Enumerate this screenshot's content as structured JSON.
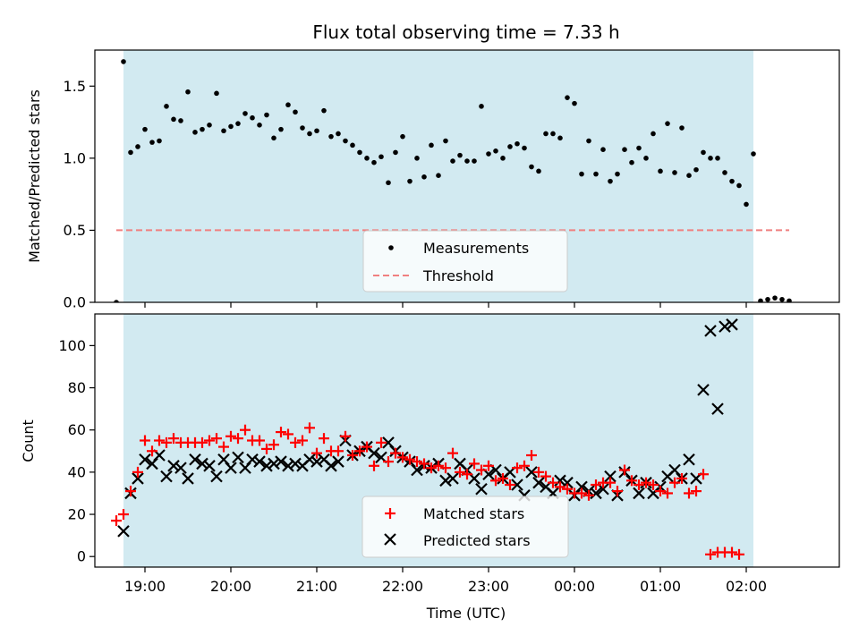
{
  "title": "Flux total observing time = 7.33 h",
  "colors": {
    "observing_band": "#add8e6",
    "measurements": "#000000",
    "threshold": "#f08080",
    "matched": "#ff0000",
    "predicted": "#000000"
  },
  "x_axis": {
    "label": "Time (UTC)",
    "ticks": [
      {
        "hour": 19,
        "label": "19:00"
      },
      {
        "hour": 20,
        "label": "20:00"
      },
      {
        "hour": 21,
        "label": "21:00"
      },
      {
        "hour": 22,
        "label": "22:00"
      },
      {
        "hour": 23,
        "label": "23:00"
      },
      {
        "hour": 24,
        "label": "00:00"
      },
      {
        "hour": 25,
        "label": "01:00"
      },
      {
        "hour": 26,
        "label": "02:00"
      }
    ]
  },
  "chart_data": [
    {
      "type": "scatter",
      "title": "Flux total observing time = 7.33 h",
      "ylabel": "Matched/Predicted stars",
      "xlim": [
        "18:25",
        "03:05"
      ],
      "ylim": [
        0,
        1.75
      ],
      "yticks": [
        {
          "value": 0,
          "label": "0.0"
        },
        {
          "value": 0.5,
          "label": "0.5"
        },
        {
          "value": 1.0,
          "label": "1.0"
        },
        {
          "value": 1.5,
          "label": "1.5"
        }
      ],
      "observing_window": [
        "18:45",
        "02:05"
      ],
      "legend": {
        "placement": "bottom-center",
        "entries": [
          "Measurements",
          "Threshold"
        ]
      },
      "threshold": {
        "name": "Threshold",
        "value": 0.5,
        "x_start": "18:40",
        "x_end": "02:30"
      },
      "series": [
        {
          "name": "Measurements",
          "x_start": "18:40",
          "x_step_minutes": 5,
          "y": [
            0.0,
            1.67,
            1.04,
            1.08,
            1.2,
            1.11,
            1.12,
            1.36,
            1.27,
            1.26,
            1.46,
            1.18,
            1.2,
            1.23,
            1.45,
            1.19,
            1.22,
            1.24,
            1.31,
            1.28,
            1.23,
            1.3,
            1.14,
            1.2,
            1.37,
            1.32,
            1.21,
            1.17,
            1.19,
            1.33,
            1.15,
            1.17,
            1.12,
            1.09,
            1.04,
            1.0,
            0.97,
            1.01,
            0.83,
            1.04,
            1.15,
            0.84,
            1.0,
            0.87,
            1.09,
            0.88,
            1.12,
            0.98,
            1.02,
            0.98,
            0.98,
            1.36,
            1.03,
            1.05,
            1.0,
            1.08,
            1.1,
            1.07,
            0.94,
            0.91,
            1.17,
            1.17,
            1.14,
            1.42,
            1.38,
            0.89,
            1.12,
            0.89,
            1.06,
            0.84,
            0.89,
            1.06,
            0.97,
            1.07,
            1.0,
            1.17,
            0.91,
            1.24,
            0.9,
            1.21,
            0.88,
            0.92,
            1.04,
            1.0,
            1.0,
            0.9,
            0.84,
            0.81,
            0.68,
            1.03,
            0.01,
            0.02,
            0.03,
            0.02,
            0.01
          ]
        }
      ]
    },
    {
      "type": "scatter",
      "xlabel": "Time (UTC)",
      "ylabel": "Count",
      "xlim": [
        "18:25",
        "03:05"
      ],
      "ylim": [
        -5,
        115
      ],
      "yticks": [
        {
          "value": 0,
          "label": "0"
        },
        {
          "value": 20,
          "label": "20"
        },
        {
          "value": 40,
          "label": "40"
        },
        {
          "value": 60,
          "label": "60"
        },
        {
          "value": 80,
          "label": "80"
        },
        {
          "value": 100,
          "label": "100"
        }
      ],
      "observing_window": [
        "18:45",
        "02:05"
      ],
      "legend": {
        "placement": "bottom-center",
        "entries": [
          "Matched stars",
          "Predicted stars"
        ]
      },
      "series": [
        {
          "name": "Matched stars",
          "marker": "plus",
          "x_start": "18:40",
          "x_step_minutes": 5,
          "y": [
            17,
            20,
            31,
            40,
            55,
            50,
            55,
            54,
            56,
            54,
            54,
            54,
            54,
            55,
            56,
            52,
            57,
            56,
            60,
            55,
            55,
            51,
            53,
            59,
            58,
            54,
            55,
            61,
            49,
            56,
            50,
            50,
            57,
            48,
            50,
            52,
            43,
            54,
            45,
            49,
            47,
            46,
            45,
            44,
            42,
            43,
            42,
            49,
            40,
            39,
            44,
            41,
            43,
            36,
            37,
            34,
            42,
            43,
            48,
            40,
            38,
            35,
            33,
            32,
            30,
            30,
            29,
            34,
            35,
            35,
            31,
            41,
            36,
            34,
            35,
            34,
            31,
            30,
            35,
            37,
            30,
            31,
            39,
            1,
            2,
            2,
            2,
            1
          ]
        },
        {
          "name": "Predicted stars",
          "marker": "x",
          "x_start": "18:45",
          "x_step_minutes": 5,
          "y": [
            12,
            30,
            37,
            46,
            44,
            48,
            38,
            43,
            42,
            37,
            46,
            44,
            43,
            38,
            46,
            42,
            47,
            42,
            46,
            45,
            43,
            44,
            45,
            43,
            44,
            43,
            46,
            45,
            46,
            43,
            45,
            55,
            48,
            50,
            52,
            49,
            47,
            54,
            50,
            47,
            45,
            41,
            43,
            42,
            44,
            36,
            37,
            44,
            41,
            37,
            32,
            39,
            41,
            37,
            40,
            34,
            29,
            40,
            35,
            33,
            30,
            36,
            35,
            29,
            33,
            31,
            30,
            32,
            38,
            29,
            40,
            36,
            30,
            35,
            30,
            33,
            38,
            41,
            37,
            46,
            37,
            79,
            107,
            70,
            109,
            110
          ]
        }
      ]
    }
  ]
}
